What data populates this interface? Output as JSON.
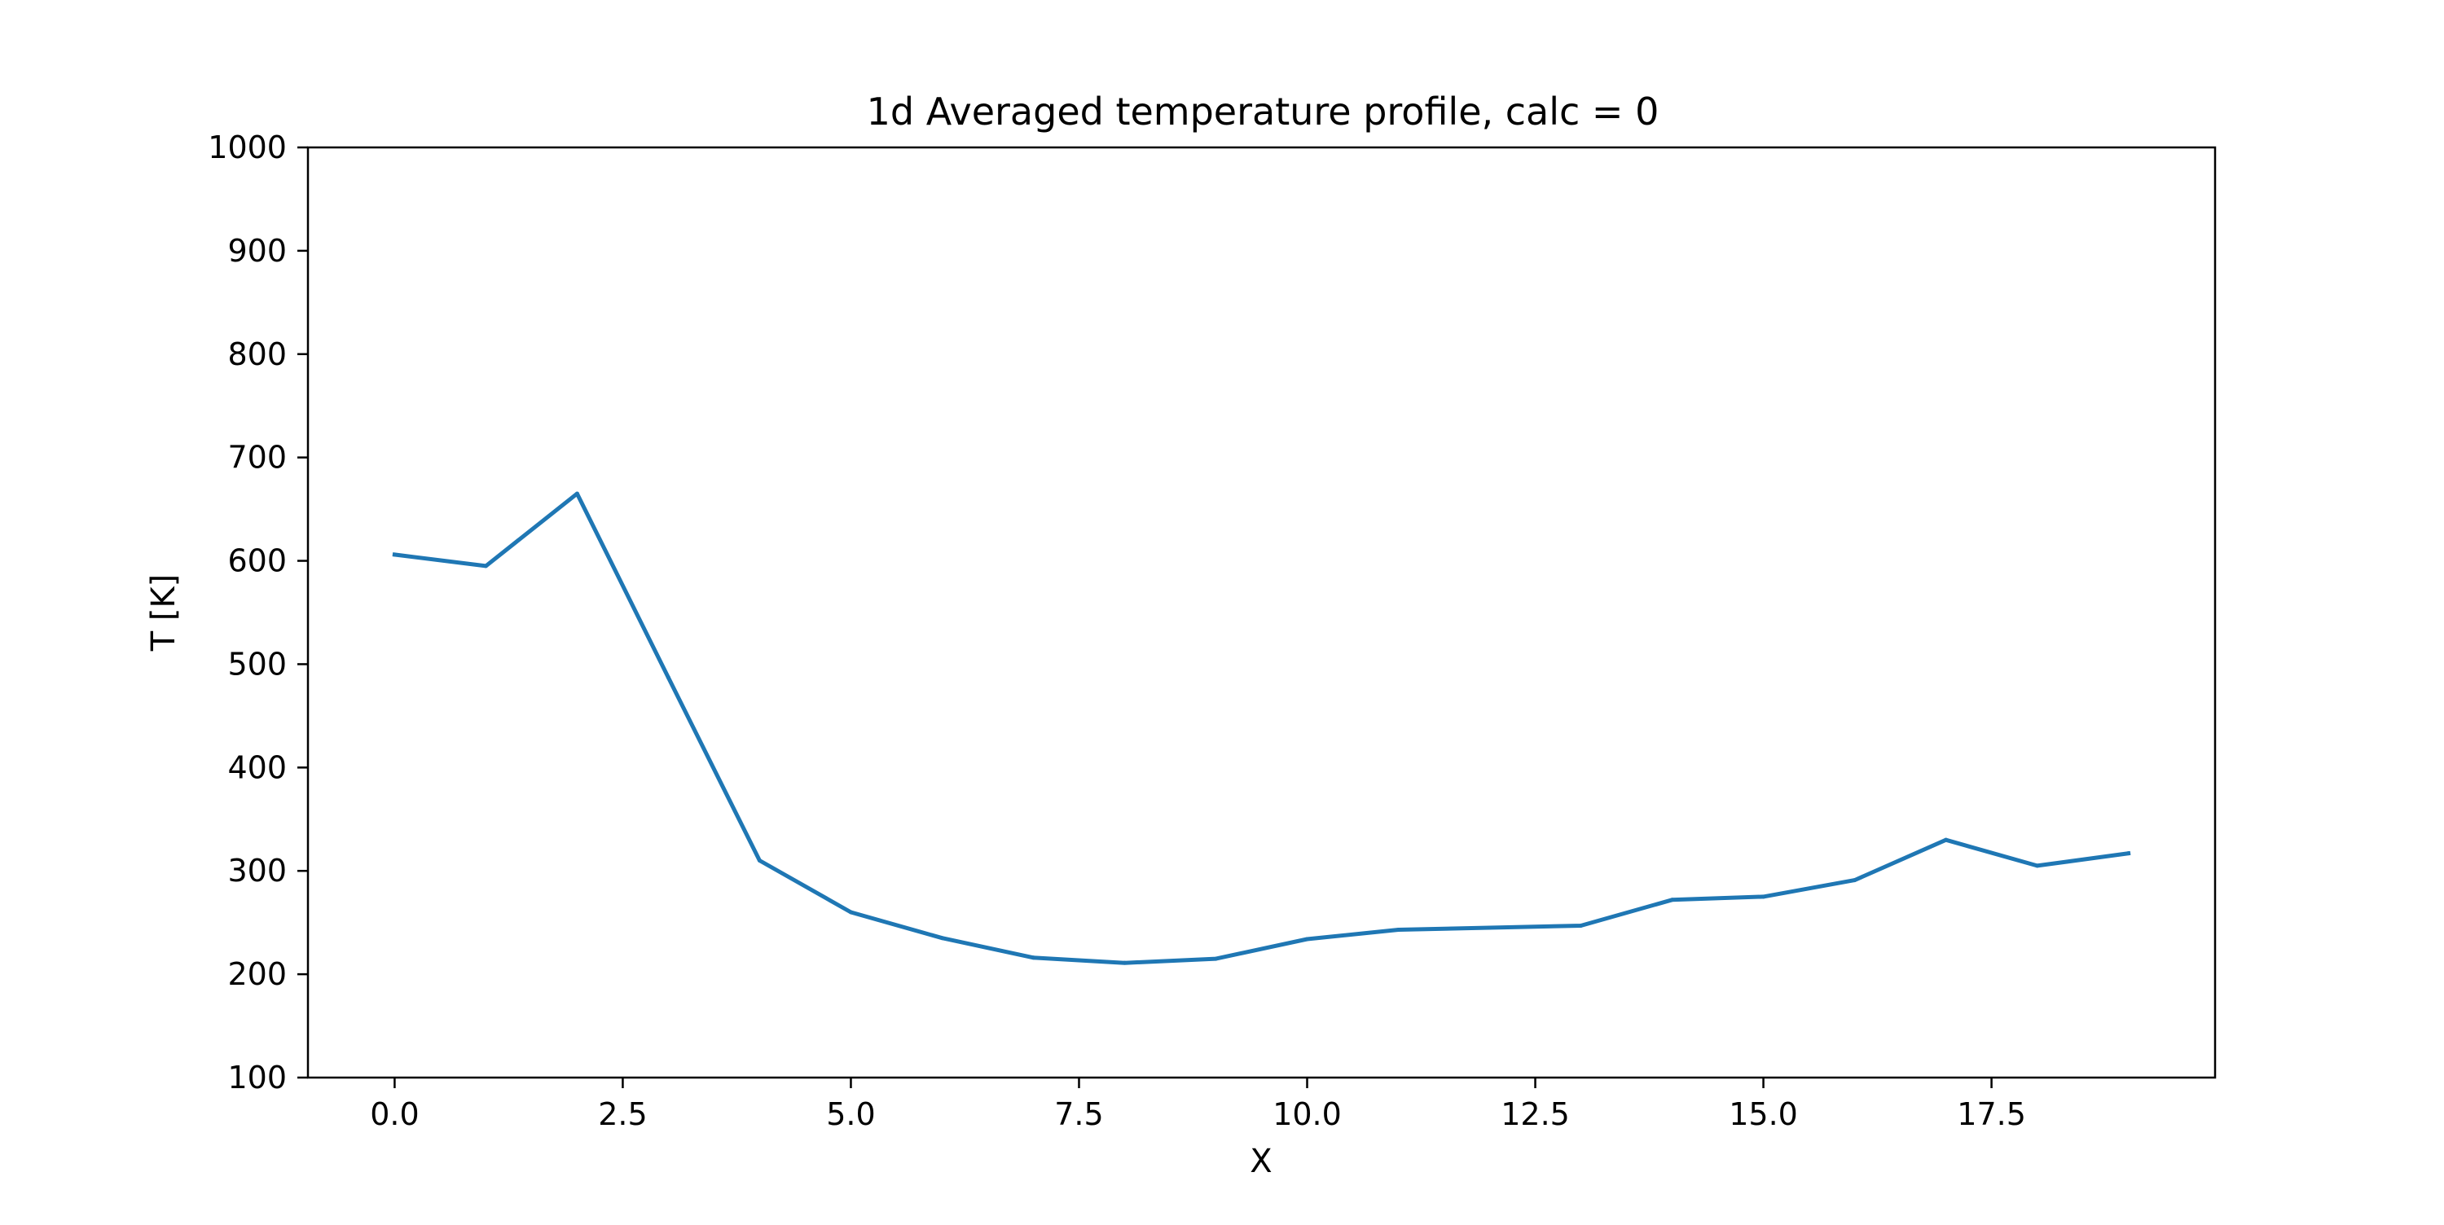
{
  "chart_data": {
    "type": "line",
    "title": "1d Averaged temperature profile, calc = 0",
    "xlabel": "X",
    "ylabel": "T [K]",
    "xlim": [
      -0.95,
      19.95
    ],
    "ylim": [
      100,
      1000
    ],
    "xticks": [
      0.0,
      2.5,
      5.0,
      7.5,
      10.0,
      12.5,
      15.0,
      17.5
    ],
    "xtick_labels": [
      "0.0",
      "2.5",
      "5.0",
      "7.5",
      "10.0",
      "12.5",
      "15.0",
      "17.5"
    ],
    "yticks": [
      100,
      200,
      300,
      400,
      500,
      600,
      700,
      800,
      900,
      1000
    ],
    "ytick_labels": [
      "100",
      "200",
      "300",
      "400",
      "500",
      "600",
      "700",
      "800",
      "900",
      "1000"
    ],
    "grid": false,
    "series": [
      {
        "color": "#1f77b4",
        "x": [
          0,
          1,
          2,
          3,
          4,
          5,
          6,
          7,
          8,
          9,
          10,
          11,
          12,
          13,
          14,
          15,
          16,
          17,
          18,
          19
        ],
        "y": [
          606,
          595,
          665,
          487,
          310,
          260,
          235,
          216,
          211,
          215,
          234,
          243,
          245,
          247,
          272,
          275,
          291,
          330,
          305,
          317
        ]
      }
    ]
  }
}
